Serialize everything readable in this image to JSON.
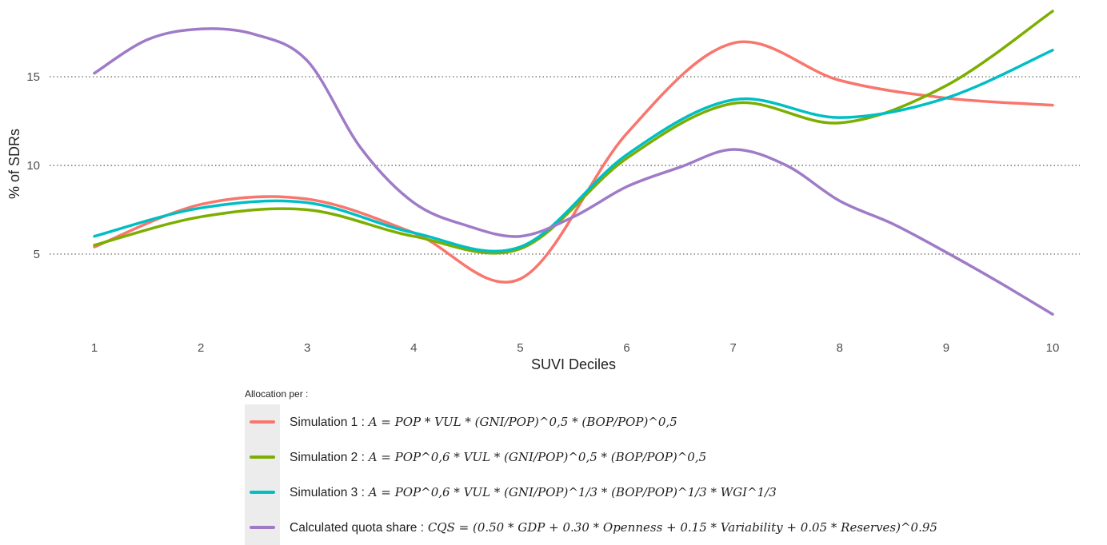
{
  "chart_data": {
    "type": "line",
    "xlabel": "SUVI Deciles",
    "ylabel": "% of SDRs",
    "x": [
      1,
      2,
      3,
      4,
      5,
      6,
      7,
      8,
      9,
      10
    ],
    "xlim": [
      1,
      10
    ],
    "ylim": [
      1.3,
      18.7
    ],
    "x_ticks": [
      "1",
      "2",
      "3",
      "4",
      "5",
      "6",
      "7",
      "8",
      "9",
      "10"
    ],
    "y_ticks": [
      "5",
      "10",
      "15"
    ],
    "grid": "horizontal dotted at major y ticks",
    "series": [
      {
        "name": "Simulation 1",
        "color": "#F8766D",
        "x": [
          1,
          2,
          3,
          4,
          5,
          6,
          7,
          8,
          9,
          10
        ],
        "values": [
          5.4,
          7.8,
          8.1,
          6.2,
          3.6,
          11.8,
          16.9,
          14.8,
          13.8,
          13.4
        ]
      },
      {
        "name": "Simulation 2",
        "color": "#7CAE00",
        "x": [
          1,
          2,
          3,
          4,
          5,
          6,
          7,
          8,
          9,
          10
        ],
        "values": [
          5.5,
          7.1,
          7.5,
          6.0,
          5.3,
          10.4,
          13.5,
          12.4,
          14.5,
          18.7
        ]
      },
      {
        "name": "Simulation 3",
        "color": "#00BFC4",
        "x": [
          1,
          2,
          3,
          4,
          5,
          6,
          7,
          8,
          9,
          10
        ],
        "values": [
          6.0,
          7.6,
          7.9,
          6.2,
          5.4,
          10.6,
          13.7,
          12.7,
          13.8,
          16.5
        ]
      },
      {
        "name": "Calculated quota share",
        "color": "#9F7BC7",
        "x": [
          1,
          1.5,
          2,
          2.5,
          3,
          3.5,
          4,
          4.5,
          5,
          5.5,
          6,
          6.5,
          7,
          7.5,
          8,
          8.5,
          9,
          9.5,
          10
        ],
        "values": [
          15.2,
          17.1,
          17.7,
          17.4,
          15.9,
          11.0,
          7.9,
          6.6,
          6.0,
          7.1,
          8.8,
          9.9,
          10.9,
          10.0,
          8.0,
          6.7,
          5.1,
          3.4,
          1.6
        ]
      }
    ]
  },
  "legend": {
    "title": "Allocation per :",
    "items": [
      {
        "label": "Simulation 1 :",
        "color": "#F8766D",
        "formula": "A = POP * VUL * (GNI/POP)^0,5 * (BOP/POP)^0,5"
      },
      {
        "label": "Simulation 2 :",
        "color": "#7CAE00",
        "formula": "A = POP^0,6 * VUL * (GNI/POP)^0,5 * (BOP/POP)^0,5"
      },
      {
        "label": "Simulation 3 :",
        "color": "#00BFC4",
        "formula": "A = POP^0,6 * VUL * (GNI/POP)^1/3 * (BOP/POP)^1/3 * WGI^1/3"
      },
      {
        "label": "Calculated quota share :",
        "color": "#9F7BC7",
        "formula": "CQS = (0.50 * GDP + 0.30 * Openness + 0.15 * Variability + 0.05 * Reserves)^0.95"
      }
    ]
  }
}
